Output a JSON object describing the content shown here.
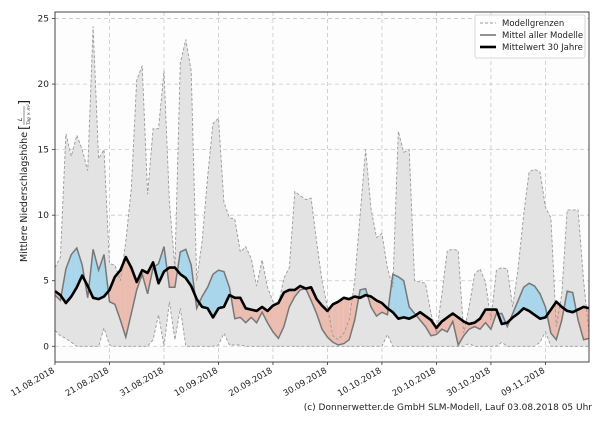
{
  "chart_data": {
    "type": "area",
    "title": "",
    "xlabel": "",
    "ylabel": "Mittlere Niederschlagshöhe",
    "ylabel_unit_num": "L",
    "ylabel_unit_den": "Tag × m²",
    "ylim": [
      -1.2,
      25.5
    ],
    "yticks": [
      0,
      5,
      10,
      15,
      20,
      25
    ],
    "grid": true,
    "legend_position": "top-right",
    "xtick_labels": [
      "11.08.2018",
      "21.08.2018",
      "31.08.2018",
      "10.09.2018",
      "20.09.2018",
      "30.09.2018",
      "10.10.2018",
      "20.10.2018",
      "30.10.2018",
      "09.11.2018"
    ],
    "x": [
      "2018-08-11",
      "2018-08-12",
      "2018-08-13",
      "2018-08-14",
      "2018-08-15",
      "2018-08-16",
      "2018-08-17",
      "2018-08-18",
      "2018-08-19",
      "2018-08-20",
      "2018-08-21",
      "2018-08-22",
      "2018-08-23",
      "2018-08-24",
      "2018-08-25",
      "2018-08-26",
      "2018-08-27",
      "2018-08-28",
      "2018-08-29",
      "2018-08-30",
      "2018-08-31",
      "2018-09-01",
      "2018-09-02",
      "2018-09-03",
      "2018-09-04",
      "2018-09-05",
      "2018-09-06",
      "2018-09-07",
      "2018-09-08",
      "2018-09-09",
      "2018-09-10",
      "2018-09-11",
      "2018-09-12",
      "2018-09-13",
      "2018-09-14",
      "2018-09-15",
      "2018-09-16",
      "2018-09-17",
      "2018-09-18",
      "2018-09-19",
      "2018-09-20",
      "2018-09-21",
      "2018-09-22",
      "2018-09-23",
      "2018-09-24",
      "2018-09-25",
      "2018-09-26",
      "2018-09-27",
      "2018-09-28",
      "2018-09-29",
      "2018-09-30",
      "2018-10-01",
      "2018-10-02",
      "2018-10-03",
      "2018-10-04",
      "2018-10-05",
      "2018-10-06",
      "2018-10-07",
      "2018-10-08",
      "2018-10-09",
      "2018-10-10",
      "2018-10-11",
      "2018-10-12",
      "2018-10-13",
      "2018-10-14",
      "2018-10-15",
      "2018-10-16",
      "2018-10-17",
      "2018-10-18",
      "2018-10-19",
      "2018-10-20",
      "2018-10-21",
      "2018-10-22",
      "2018-10-23",
      "2018-10-24",
      "2018-10-25",
      "2018-10-26",
      "2018-10-27",
      "2018-10-28",
      "2018-10-29",
      "2018-10-30",
      "2018-10-31",
      "2018-11-01",
      "2018-11-02",
      "2018-11-03",
      "2018-11-04",
      "2018-11-05",
      "2018-11-06",
      "2018-11-07",
      "2018-11-08",
      "2018-11-09",
      "2018-11-10",
      "2018-11-11",
      "2018-11-12",
      "2018-11-13",
      "2018-11-14",
      "2018-11-15",
      "2018-11-16",
      "2018-11-17"
    ],
    "series": [
      {
        "name": "Modellgrenzen",
        "role": "upper",
        "values": [
          6,
          6.8,
          16.2,
          14.5,
          16.1,
          15,
          13.4,
          24.4,
          14.3,
          15,
          6.3,
          6.2,
          5,
          8,
          12,
          20.3,
          21.4,
          11.6,
          16.6,
          16.6,
          21,
          11,
          6,
          21.6,
          23.4,
          21,
          5,
          8,
          12.9,
          17,
          17.4,
          11,
          9.8,
          9.7,
          7.2,
          7.6,
          6.7,
          4.6,
          6.6,
          4.5,
          3.4,
          3.2,
          5.2,
          6,
          11.8,
          11.5,
          11.2,
          11.3,
          8,
          5,
          3,
          0.8,
          0.5,
          1,
          2,
          5,
          10,
          15,
          10.5,
          8.3,
          8.6,
          6,
          4.5,
          16.4,
          14.8,
          15,
          5,
          4.9,
          4.8,
          2.5,
          1,
          4,
          7.3,
          7.4,
          7.3,
          1,
          3,
          5.5,
          5.9,
          4.9,
          2,
          5.8,
          6,
          5.9,
          3,
          6,
          10,
          13.3,
          13.5,
          13.3,
          10.6,
          9.8,
          1.5,
          4,
          10.4,
          10.4,
          10.4,
          5,
          1
        ]
      },
      {
        "name": "Modellgrenzen",
        "role": "lower",
        "values": [
          1.2,
          0.8,
          0.6,
          0.3,
          0,
          0,
          0,
          0,
          0,
          1.4,
          0.1,
          0,
          0,
          0,
          0,
          0,
          0,
          0,
          0.5,
          2.4,
          0,
          3.4,
          0.5,
          2.9,
          0,
          0,
          0,
          0,
          0,
          0,
          0.1,
          1,
          0.1,
          0.1,
          0.1,
          0,
          0,
          0,
          0,
          0,
          0,
          0,
          0,
          0,
          0,
          0,
          0,
          0,
          0,
          0,
          0,
          0,
          0,
          0,
          0,
          0,
          0,
          0,
          0,
          0,
          0,
          0.9,
          0,
          0,
          0,
          0,
          0,
          0,
          0,
          0,
          0,
          0,
          0,
          0,
          0,
          0,
          0.2,
          0,
          0,
          0,
          0,
          0,
          0.3,
          0,
          0,
          0,
          0,
          0,
          0,
          0.3,
          1.1,
          0,
          0,
          0,
          0,
          0,
          0,
          0,
          0
        ]
      },
      {
        "name": "Mittel aller Modelle",
        "values": [
          3.9,
          3.5,
          5.9,
          7,
          7.5,
          6.2,
          3.7,
          7.4,
          5.8,
          7,
          3.4,
          3.2,
          2,
          0.7,
          2.5,
          4.3,
          5.5,
          4,
          6,
          6.3,
          7.6,
          4.5,
          4.5,
          7.2,
          7.4,
          6.2,
          2.9,
          3.8,
          4.5,
          5.5,
          5.8,
          5.7,
          4.5,
          2.1,
          2.2,
          1.8,
          2.2,
          1.8,
          2.6,
          1.8,
          1.1,
          0.6,
          1.5,
          3,
          3.8,
          4.3,
          4.4,
          3.5,
          2.5,
          1.3,
          0.7,
          0.3,
          0.1,
          0.2,
          0.5,
          2,
          4.3,
          4.4,
          3,
          2.3,
          2.6,
          2.4,
          5.5,
          5.3,
          5,
          3,
          2.5,
          2,
          1.5,
          0.8,
          0.9,
          1.3,
          1.1,
          1.9,
          0.1,
          0.8,
          1.3,
          1.5,
          1.3,
          1.8,
          1.3,
          2.5,
          2.5,
          1.5,
          2.5,
          3.5,
          4.5,
          4.8,
          4.6,
          4,
          3,
          1,
          0.5,
          2,
          4.2,
          4.1,
          2,
          0.5,
          0.6
        ]
      },
      {
        "name": "Mittelwert 30 Jahre",
        "values": [
          4.2,
          3.9,
          3.3,
          3.8,
          4.5,
          5.4,
          4.6,
          3.7,
          3.6,
          3.8,
          4.3,
          5.3,
          5.8,
          6.8,
          6,
          4.9,
          5.8,
          5.6,
          6.4,
          4.8,
          5.7,
          6,
          6,
          5.5,
          5.2,
          4.6,
          3.6,
          3,
          2.9,
          2.2,
          2.9,
          3,
          3.9,
          3.7,
          3.7,
          2.9,
          2.8,
          2.7,
          3,
          2.7,
          3.1,
          3.3,
          4.1,
          4.3,
          4.3,
          4.6,
          4.4,
          4.5,
          3.6,
          3.1,
          2.7,
          3.2,
          3.4,
          3.7,
          3.6,
          3.8,
          3.7,
          3.9,
          3.8,
          3.5,
          3.3,
          2.9,
          2.6,
          2.1,
          2.2,
          2.1,
          2.3,
          2.6,
          2.3,
          2,
          1.4,
          1.9,
          2.2,
          2.5,
          2.2,
          1.9,
          1.7,
          1.8,
          2.1,
          2.8,
          2.8,
          2.8,
          1.7,
          1.8,
          2.2,
          2.5,
          2.9,
          2.7,
          2.4,
          2.1,
          2.2,
          2.8,
          3.4,
          3,
          2.7,
          2.6,
          2.8,
          3,
          2.9
        ]
      }
    ],
    "colors": {
      "band": "#e3e3e3",
      "above": "#a9d6ea",
      "below": "#ebbcb0",
      "model_line": "#777777",
      "climate_line": "#000000",
      "limit_line": "#9a9a9a"
    }
  },
  "legend": {
    "items": [
      "Modellgrenzen",
      "Mittel aller Modelle",
      "Mittelwert 30 Jahre"
    ]
  },
  "footer": {
    "credit": "(c) Donnerwetter.de GmbH SLM-Modell, Lauf 03.08.2018 05 Uhr"
  }
}
